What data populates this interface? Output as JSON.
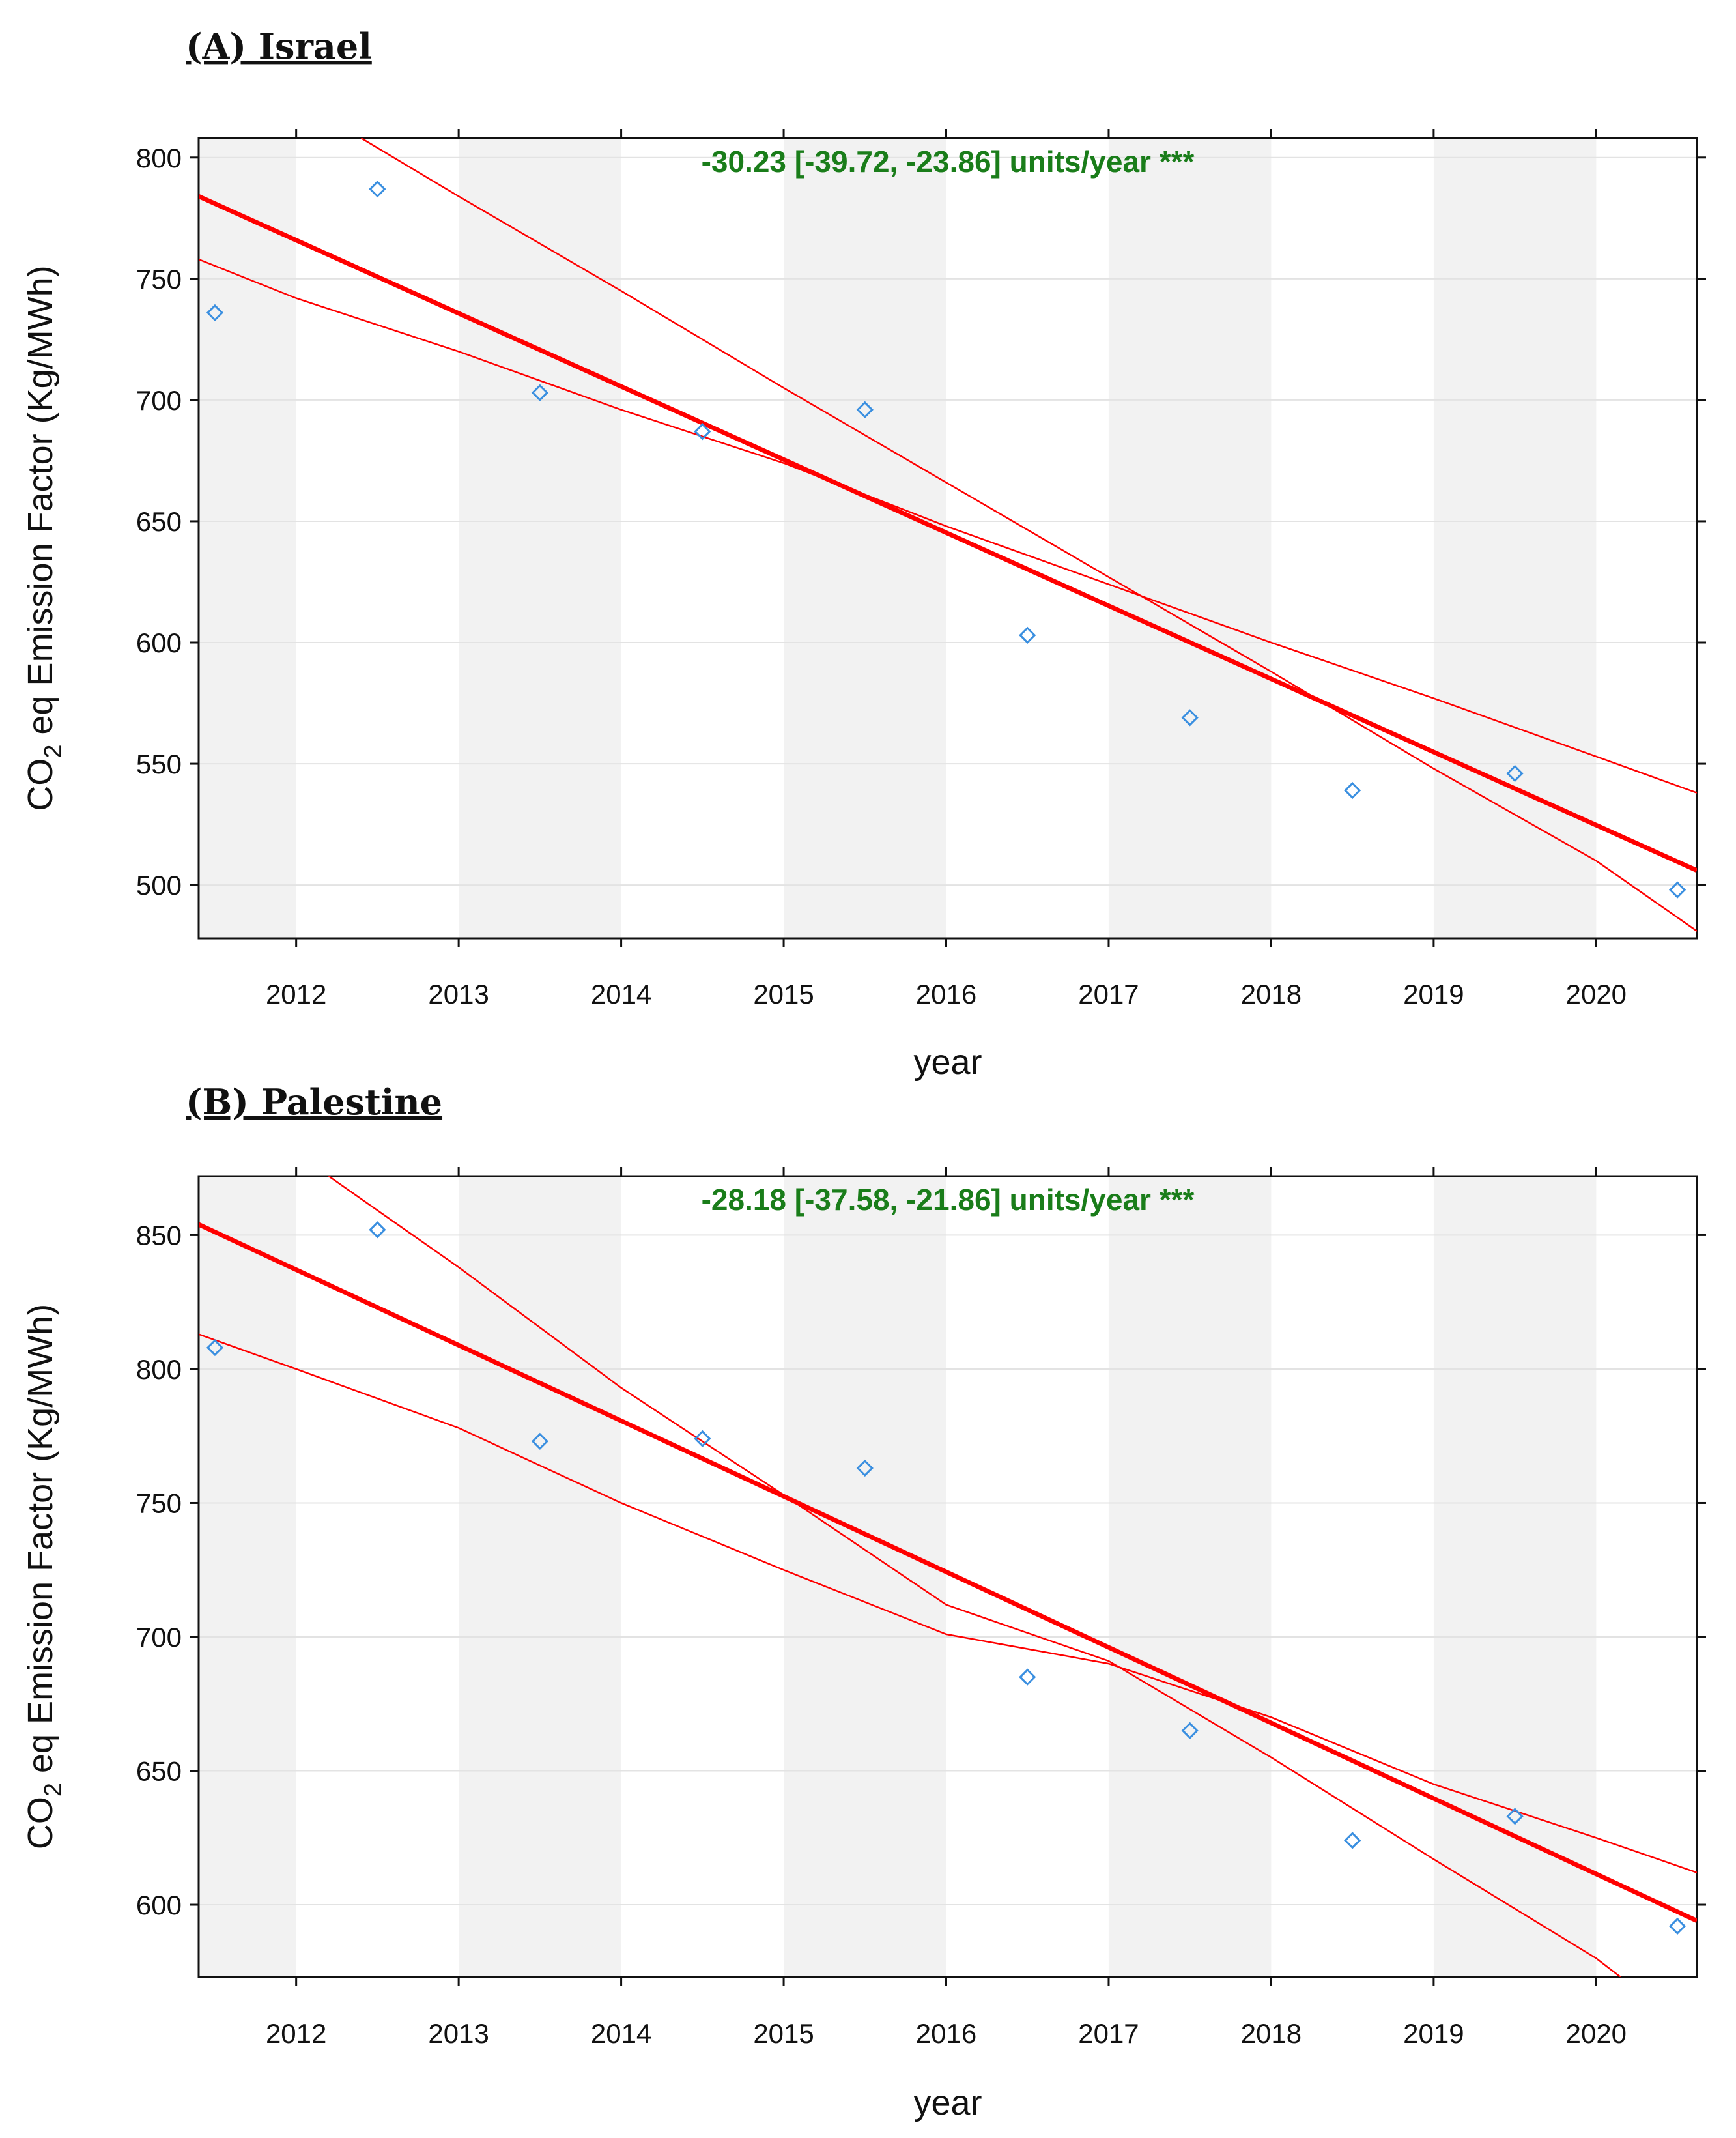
{
  "chart_data": [
    {
      "type": "scatter",
      "title": "(A) Israel",
      "xlabel": "year",
      "ylabel_prefix": "CO",
      "ylabel_sub": "2",
      "ylabel_suffix": " eq Emission Factor (Kg/MWh)",
      "xlim": [
        2011.4,
        2020.62
      ],
      "ylim": [
        478,
        808
      ],
      "x_ticks": [
        2012,
        2013,
        2014,
        2015,
        2016,
        2017,
        2018,
        2019,
        2020
      ],
      "x_tick_labels": [
        "2012",
        "2013",
        "2014",
        "2015",
        "2016",
        "2017",
        "2018",
        "2019",
        "2020"
      ],
      "y_ticks": [
        500,
        550,
        600,
        650,
        700,
        750,
        800
      ],
      "y_tick_labels": [
        "500",
        "550",
        "600",
        "650",
        "700",
        "750",
        "800"
      ],
      "shaded_year_bands": [
        [
          2011.4,
          2012
        ],
        [
          2013,
          2014
        ],
        [
          2015,
          2016
        ],
        [
          2017,
          2018
        ],
        [
          2019,
          2020
        ]
      ],
      "annotation": "-30.23 [-39.72, -23.86] units/year ***",
      "points": {
        "x": [
          2011.5,
          2012.5,
          2013.5,
          2014.5,
          2015.5,
          2016.5,
          2017.5,
          2018.5,
          2019.5,
          2020.5
        ],
        "y": [
          736,
          787,
          703,
          687,
          696,
          603,
          569,
          539,
          546,
          498
        ]
      },
      "trend_line": {
        "x": [
          2011.4,
          2020.62
        ],
        "y": [
          784,
          506
        ]
      },
      "ci_upper": {
        "x": [
          2011.4,
          2012.0,
          2013.0,
          2014.0,
          2015.0,
          2016.0,
          2017.0,
          2018.0,
          2019.0,
          2020.0,
          2020.62
        ],
        "y": [
          758,
          742,
          720,
          696,
          674,
          648,
          624,
          600,
          577,
          553,
          538
        ]
      },
      "ci_lower": {
        "x": [
          2012.4,
          2013.0,
          2014.0,
          2015.0,
          2016.0,
          2017.0,
          2018.0,
          2019.0,
          2020.0,
          2020.62
        ],
        "y": [
          808,
          784,
          745,
          705,
          666,
          627,
          588,
          548,
          510,
          481
        ]
      }
    },
    {
      "type": "scatter",
      "title": "(B) Palestine",
      "xlabel": "year",
      "ylabel_prefix": "CO",
      "ylabel_sub": "2",
      "ylabel_suffix": " eq Emission Factor (Kg/MWh)",
      "xlim": [
        2011.4,
        2020.62
      ],
      "ylim": [
        573,
        872
      ],
      "x_ticks": [
        2012,
        2013,
        2014,
        2015,
        2016,
        2017,
        2018,
        2019,
        2020
      ],
      "x_tick_labels": [
        "2012",
        "2013",
        "2014",
        "2015",
        "2016",
        "2017",
        "2018",
        "2019",
        "2020"
      ],
      "y_ticks": [
        600,
        650,
        700,
        750,
        800,
        850
      ],
      "y_tick_labels": [
        "600",
        "650",
        "700",
        "750",
        "800",
        "850"
      ],
      "shaded_year_bands": [
        [
          2011.4,
          2012
        ],
        [
          2013,
          2014
        ],
        [
          2015,
          2016
        ],
        [
          2017,
          2018
        ],
        [
          2019,
          2020
        ]
      ],
      "annotation": "-28.18 [-37.58, -21.86] units/year ***",
      "points": {
        "x": [
          2011.5,
          2012.5,
          2013.5,
          2014.5,
          2015.5,
          2016.5,
          2017.5,
          2018.5,
          2019.5,
          2020.5
        ],
        "y": [
          808,
          852,
          773,
          774,
          763,
          685,
          665,
          624,
          633,
          592
        ]
      },
      "trend_line": {
        "x": [
          2011.4,
          2020.62
        ],
        "y": [
          854,
          594
        ]
      },
      "ci_upper": {
        "x": [
          2011.4,
          2012.0,
          2013.0,
          2014.0,
          2015.0,
          2016.0,
          2017.0,
          2018.0,
          2019.0,
          2020.0,
          2020.62
        ],
        "y": [
          813,
          800,
          778,
          750,
          725,
          701,
          690,
          670,
          645,
          625,
          612
        ]
      },
      "ci_lower": {
        "x": [
          2012.2,
          2013.0,
          2014.0,
          2015.0,
          2016.0,
          2017.0,
          2018.0,
          2019.0,
          2020.0,
          2020.15
        ],
        "y": [
          872,
          838,
          793,
          753,
          712,
          691,
          655,
          617,
          580,
          573
        ]
      }
    }
  ]
}
